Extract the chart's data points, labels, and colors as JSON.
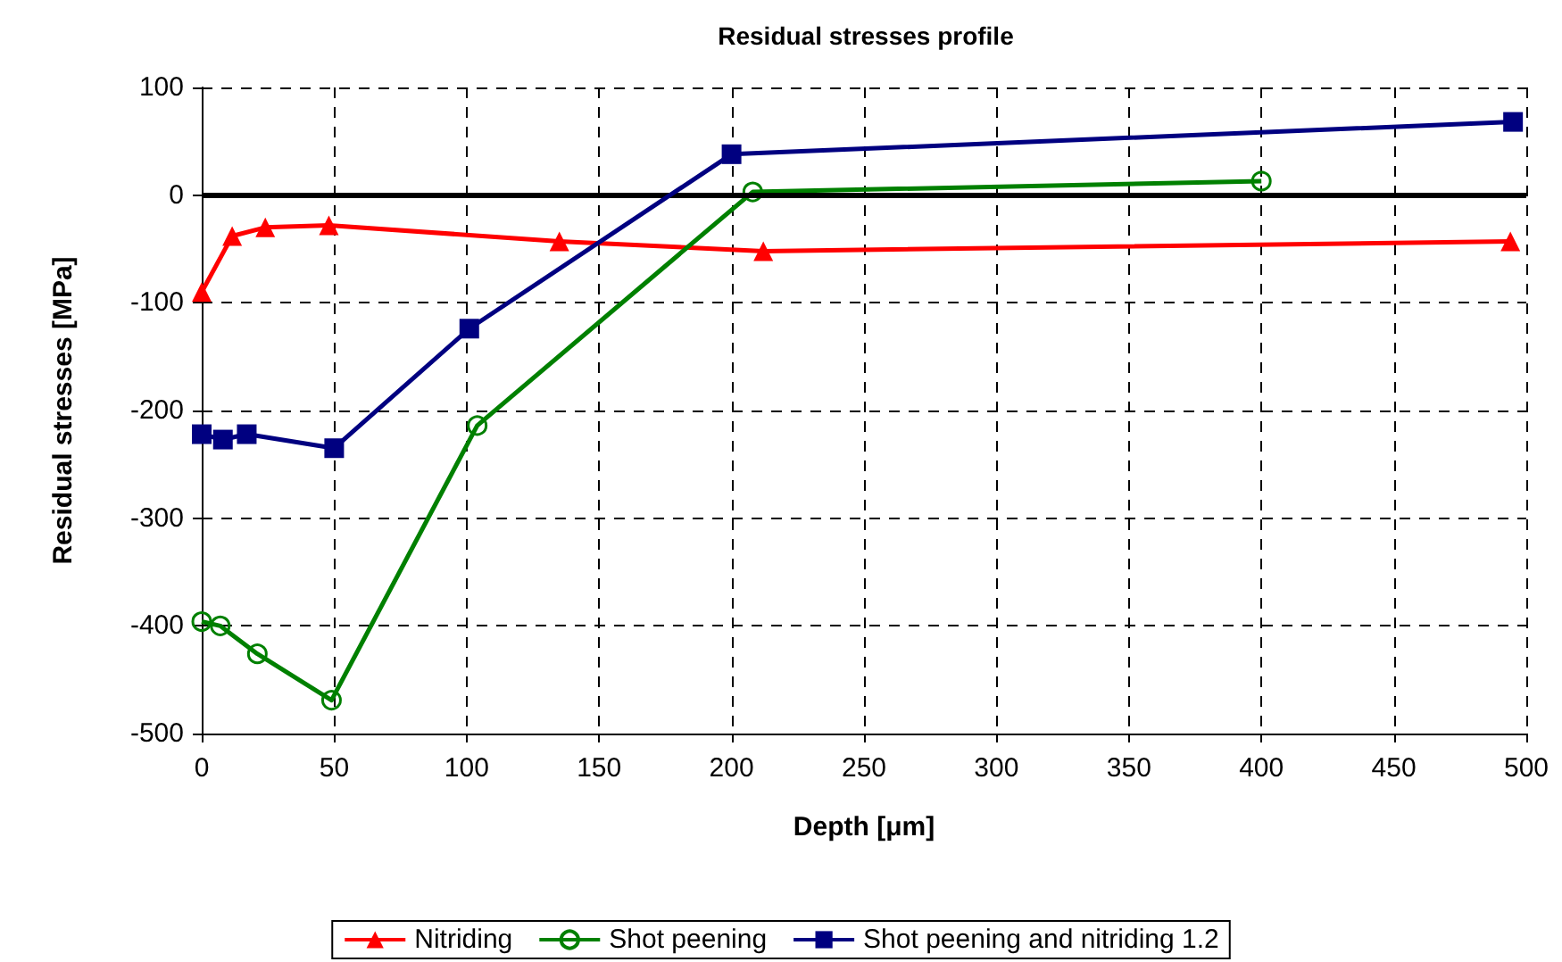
{
  "chart_data": {
    "type": "line",
    "title": "Residual stresses profile",
    "xlabel": "Depth [μm]",
    "ylabel": "Residual stresses [MPa]",
    "xlim": [
      0,
      500
    ],
    "xticks": [
      0,
      50,
      100,
      150,
      200,
      250,
      300,
      350,
      400,
      450,
      500
    ],
    "ylim": [
      -500,
      100
    ],
    "yticks": [
      -500,
      -400,
      -300,
      -200,
      -100,
      0,
      100
    ],
    "grid": true,
    "legend": "bottom",
    "line_style": "solid",
    "ref_lines": [
      {
        "axis": "y",
        "value": 0,
        "color": "#000000"
      }
    ],
    "series": [
      {
        "name": "Nitriding",
        "color": "#ff0000",
        "marker": "triangle",
        "x": [
          0,
          11.5,
          24,
          48,
          135,
          212,
          494
        ],
        "values": [
          -90,
          -38,
          -30,
          -28,
          -43,
          -52,
          -43
        ]
      },
      {
        "name": "Shot peening",
        "color": "#008000",
        "marker": "circle",
        "x": [
          0,
          7,
          21,
          49,
          104,
          208,
          400
        ],
        "values": [
          -396,
          -400,
          -426,
          -469,
          -214,
          3,
          13
        ]
      },
      {
        "name": "Shot peening and nitriding 1.2",
        "color": "#000080",
        "marker": "square",
        "x": [
          0,
          8,
          17,
          50,
          101,
          200,
          495
        ],
        "values": [
          -222,
          -227,
          -222,
          -235,
          -124,
          38,
          68
        ]
      }
    ]
  }
}
